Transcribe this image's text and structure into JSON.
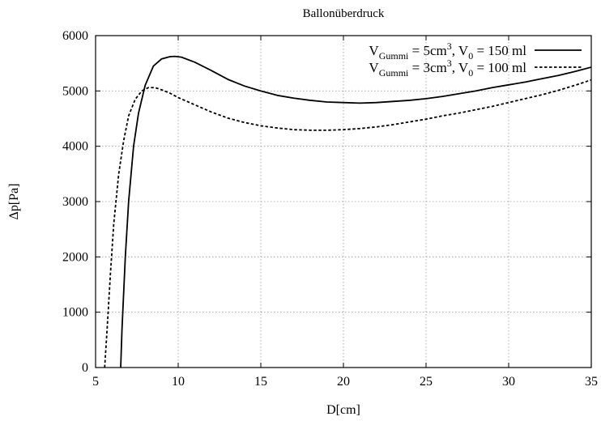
{
  "chart_data": {
    "type": "line",
    "title": "Ballonüberdruck",
    "xlabel": "D[cm]",
    "ylabel": "Δp[Pa]",
    "xlim": [
      5,
      35
    ],
    "ylim": [
      0,
      6000
    ],
    "xticks": [
      5,
      10,
      15,
      20,
      25,
      30,
      35
    ],
    "yticks": [
      0,
      1000,
      2000,
      3000,
      4000,
      5000,
      6000
    ],
    "grid": true,
    "legend_position": "top-right",
    "series": [
      {
        "legend": {
          "v": "V",
          "vsub": "Gummi",
          "eq1": " = 5cm",
          "sup": "3",
          "comma": ", V",
          "v0sub": "0",
          "eq2": " = 150 ml"
        },
        "line_style": "solid",
        "color": "#000000",
        "x": [
          6.52,
          6.6,
          6.8,
          7.0,
          7.3,
          7.6,
          8.0,
          8.5,
          9.0,
          9.5,
          9.8,
          10.2,
          11,
          12,
          13,
          14,
          15,
          16,
          17,
          18,
          19,
          20,
          21,
          22,
          23,
          24,
          25,
          26,
          27,
          28,
          29,
          30,
          31,
          32,
          33,
          34,
          35
        ],
        "y": [
          0,
          700,
          2000,
          3000,
          4000,
          4600,
          5100,
          5450,
          5580,
          5620,
          5625,
          5610,
          5520,
          5370,
          5210,
          5090,
          5000,
          4920,
          4870,
          4830,
          4800,
          4790,
          4780,
          4790,
          4810,
          4830,
          4860,
          4900,
          4950,
          5000,
          5060,
          5110,
          5160,
          5220,
          5280,
          5350,
          5430
        ]
      },
      {
        "legend": {
          "v": "V",
          "vsub": "Gummi",
          "eq1": " = 3cm",
          "sup": "3",
          "comma": ", V",
          "v0sub": "0",
          "eq2": " = 100 ml"
        },
        "line_style": "dashed",
        "color": "#000000",
        "x": [
          5.55,
          5.7,
          5.9,
          6.1,
          6.4,
          6.7,
          7.0,
          7.4,
          7.8,
          8.2,
          8.6,
          9.0,
          9.5,
          10,
          11,
          12,
          13,
          14,
          15,
          16,
          17,
          18,
          19,
          20,
          21,
          22,
          23,
          24,
          25,
          26,
          27,
          28,
          29,
          30,
          31,
          32,
          33,
          34,
          35
        ],
        "y": [
          0,
          700,
          1700,
          2600,
          3500,
          4100,
          4550,
          4850,
          5000,
          5060,
          5060,
          5020,
          4960,
          4880,
          4750,
          4620,
          4510,
          4430,
          4370,
          4330,
          4300,
          4290,
          4290,
          4300,
          4320,
          4350,
          4390,
          4440,
          4490,
          4550,
          4600,
          4660,
          4720,
          4790,
          4860,
          4930,
          5010,
          5100,
          5200
        ]
      }
    ]
  }
}
